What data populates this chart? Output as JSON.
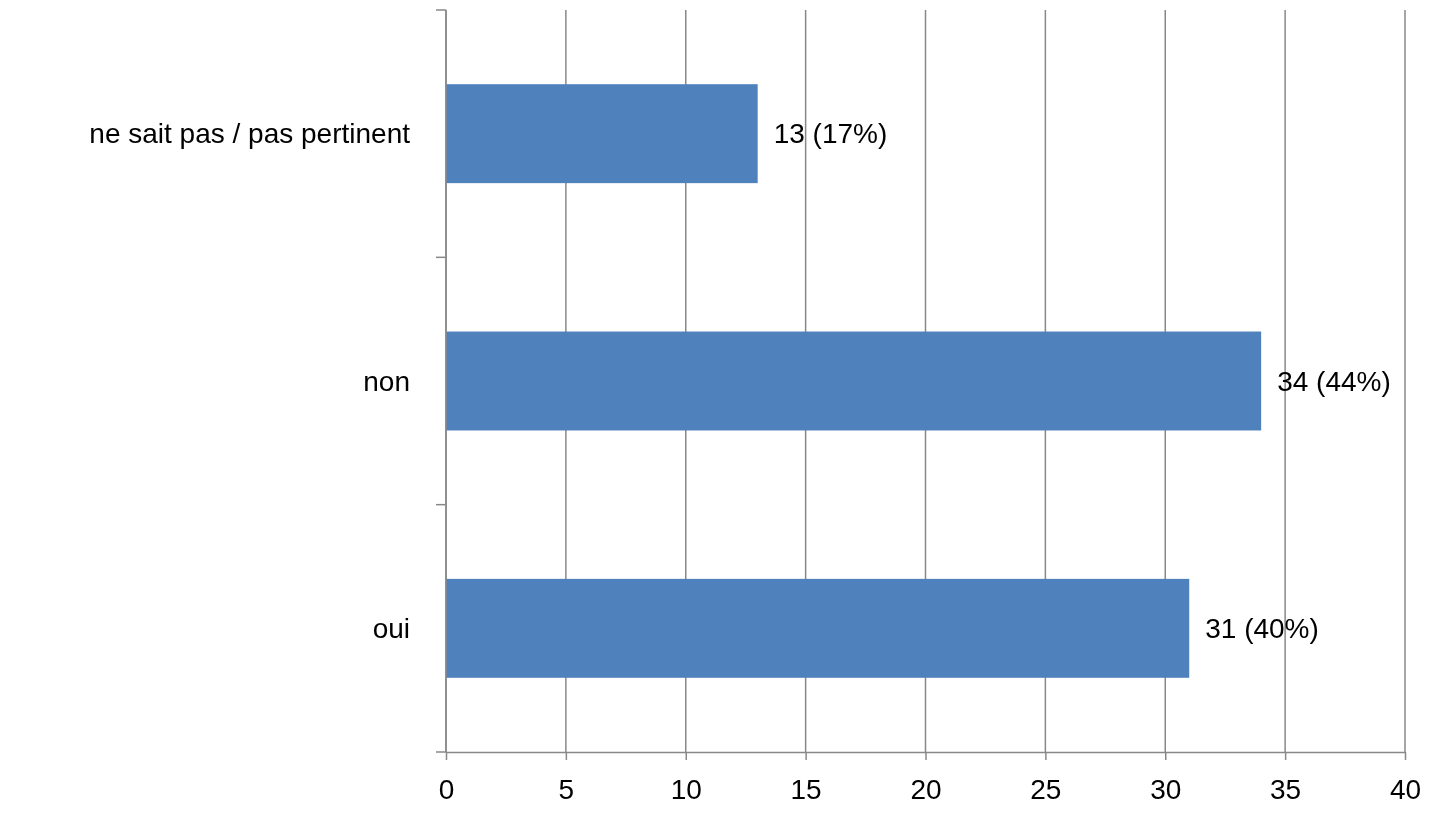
{
  "chart_data": {
    "type": "bar",
    "orientation": "horizontal",
    "categories": [
      "ne sait pas / pas pertinent",
      "non",
      "oui"
    ],
    "values": [
      13,
      34,
      31
    ],
    "value_labels": [
      "13 (17%)",
      "34 (44%)",
      "31 (40%)"
    ],
    "color": "#4f81bd",
    "xlim": [
      0,
      40
    ],
    "xticks": [
      0,
      5,
      10,
      15,
      20,
      25,
      30,
      35,
      40
    ],
    "grid": "x"
  }
}
